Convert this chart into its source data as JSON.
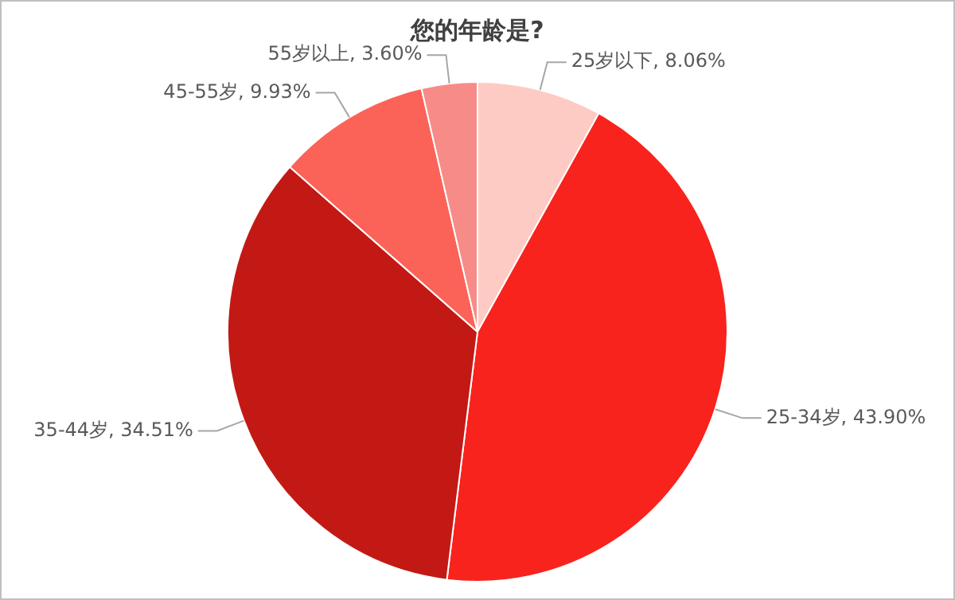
{
  "chart_data": {
    "type": "pie",
    "title": "您的年龄是?",
    "categories": [
      "25岁以下",
      "25-34岁",
      "35-44岁",
      "45-55岁",
      "55岁以上"
    ],
    "values": [
      8.06,
      43.9,
      34.51,
      9.93,
      3.6
    ],
    "value_labels": [
      "8.06%",
      "43.90%",
      "34.51%",
      "9.93%",
      "3.60%"
    ],
    "colors": [
      "#fdcbc3",
      "#f8231d",
      "#c31915",
      "#fb6358",
      "#f68b87"
    ],
    "legend": false
  }
}
